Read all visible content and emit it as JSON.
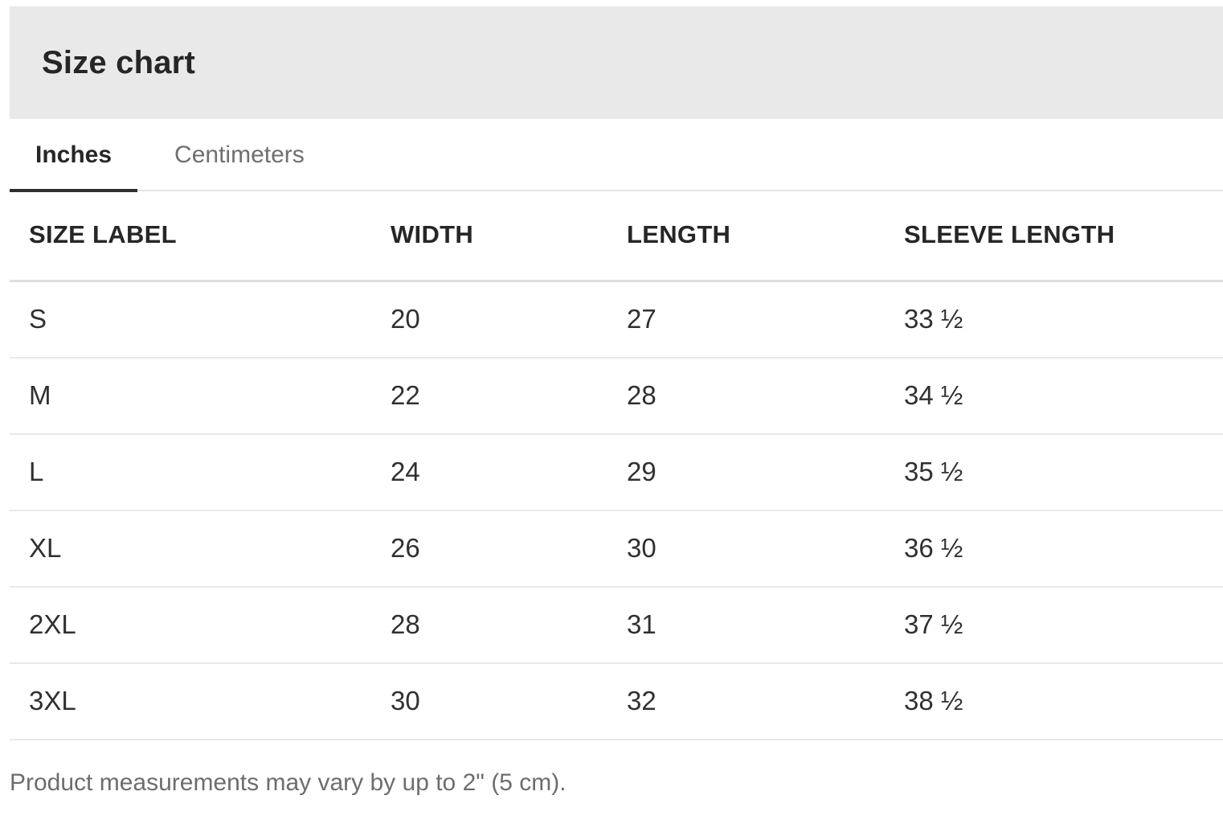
{
  "header": {
    "title": "Size chart"
  },
  "tabs": [
    {
      "label": "Inches",
      "active": true
    },
    {
      "label": "Centimeters",
      "active": false
    }
  ],
  "table": {
    "columns": [
      "SIZE LABEL",
      "WIDTH",
      "LENGTH",
      "SLEEVE LENGTH"
    ],
    "rows": [
      {
        "size": "S",
        "width": "20",
        "length": "27",
        "sleeve": "33 ½"
      },
      {
        "size": "M",
        "width": "22",
        "length": "28",
        "sleeve": "34 ½"
      },
      {
        "size": "L",
        "width": "24",
        "length": "29",
        "sleeve": "35 ½"
      },
      {
        "size": "XL",
        "width": "26",
        "length": "30",
        "sleeve": "36 ½"
      },
      {
        "size": "2XL",
        "width": "28",
        "length": "31",
        "sleeve": "37 ½"
      },
      {
        "size": "3XL",
        "width": "30",
        "length": "32",
        "sleeve": "38 ½"
      }
    ]
  },
  "footnote": "Product measurements may vary by up to 2\" (5 cm).",
  "colors": {
    "band_background": "#e9e9e9",
    "active_tab_underline": "#2e2e2e",
    "text_primary": "#262626",
    "text_secondary": "#6f6f6f",
    "row_border": "#e9e9e9",
    "header_border": "#dfdfdf"
  }
}
